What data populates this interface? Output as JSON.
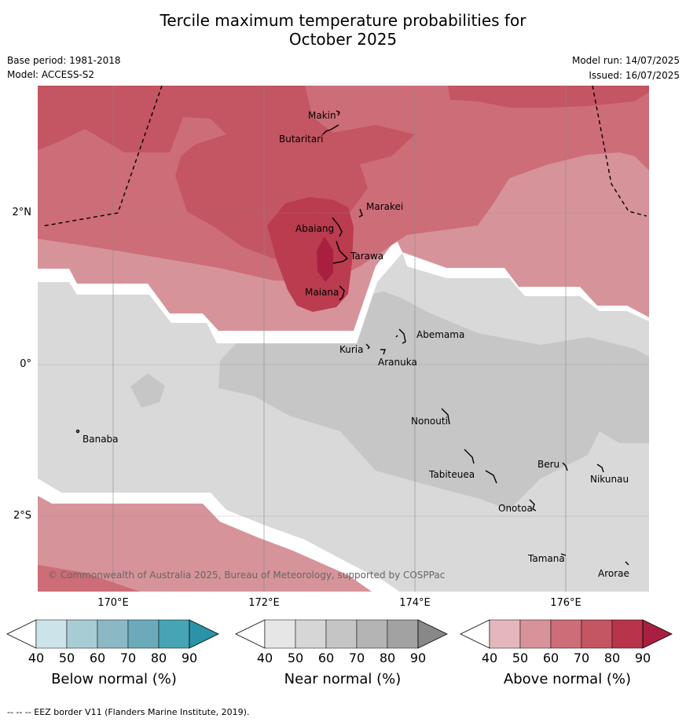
{
  "title_line1": "Tercile maximum temperature probabilities for",
  "title_line2": "October 2025",
  "base_period": "Base period: 1981-2018",
  "model": "Model: ACCESS-S2",
  "model_run": "Model run: 14/07/2025",
  "issued": "Issued: 16/07/2025",
  "copyright": "© Commonwealth of Australia 2025, Bureau of Meteorology, supported by COSPPac",
  "footer": "--  --  -- EEZ border V11 (Flanders Marine Institute, 2019).",
  "lat_labels": [
    "2°N",
    "0°",
    "2°S"
  ],
  "lon_labels": [
    "170°E",
    "172°E",
    "174°E",
    "176°E"
  ],
  "places": {
    "makin": "Makin",
    "butaritari": "Butaritari",
    "marakei": "Marakei",
    "abaiang": "Abaiang",
    "tarawa": "Tarawa",
    "maiana": "Maiana",
    "abemama": "Abemama",
    "kuria": "Kuria",
    "aranuka": "Aranuka",
    "banaba": "Banaba",
    "nonouti": "Nonouti",
    "tabiteuea": "Tabiteuea",
    "beru": "Beru",
    "nikunau": "Nikunau",
    "onotoa": "Onotoa",
    "tamana": "Tamana",
    "arorae": "Arorae"
  },
  "colorbars": {
    "below": {
      "title": "Below normal (%)",
      "ticks": [
        "40",
        "50",
        "60",
        "70",
        "80",
        "90"
      ],
      "colors": [
        "#ffffff",
        "#cce3ea",
        "#a8ccd4",
        "#8ab8c4",
        "#6aaabb",
        "#46a4b4",
        "#2a93a8"
      ]
    },
    "near": {
      "title": "Near normal (%)",
      "ticks": [
        "40",
        "50",
        "60",
        "70",
        "80",
        "90"
      ],
      "colors": [
        "#ffffff",
        "#e6e6e6",
        "#d6d6d6",
        "#c5c5c5",
        "#b4b4b4",
        "#a2a2a2",
        "#888888"
      ]
    },
    "above": {
      "title": "Above normal (%)",
      "ticks": [
        "40",
        "50",
        "60",
        "70",
        "80",
        "90"
      ],
      "colors": [
        "#ffffff",
        "#e4b7bd",
        "#d8929a",
        "#cd6d77",
        "#c45562",
        "#b7344b",
        "#a81f3f"
      ]
    }
  }
}
